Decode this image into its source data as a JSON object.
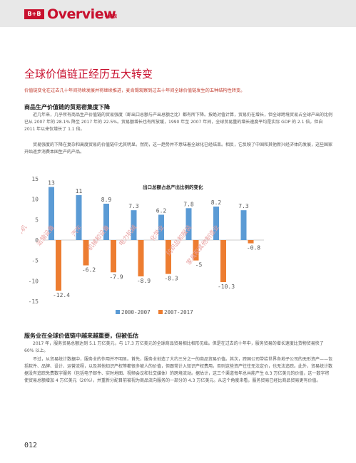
{
  "header": {
    "logo": "B+B",
    "title": "Overview",
    "subtitle": "• 概观"
  },
  "title": "全球价值链正经历五大转变",
  "intro": "价值链变化在过去几十年间持续发展并将继续推进，麦肯锡观察到过去十年间全球价值链发生的五种结构性转变。",
  "sections": [
    {
      "heading": "商品生产价值链的贸易密集度下降",
      "paragraphs": [
        "近几年来，几乎所有商品生产价值链的贸易强度（即出口总额与产出总额之比）都有所下降。按绝对值计算，贸易仍在增长，但全球跨境贸易占全球产出的比例已从 2007 年的 28.1% 降至 2017 年的 22.5%。贸易额增长也有所放缓，1990 年至 2007 年间，全球贸易量的增长速度平均是实际 GDP 的 2.1 倍，但自 2011 年以来仅增长了 1.1 倍。",
        "贸易强度的下降在复杂和高度贸易的价值链中尤其明显。然而，这一趋势并不意味着全球化已经结束。相反，它反映了中国和其他新兴经济体的发展，这些国家开始逐步消费本国生产的产品。"
      ]
    },
    {
      "heading": "服务业在全球价值链中越来越重要，但被低估",
      "paragraphs": [
        "2017 年，服务贸易总额达到 5.1 万亿美元，与 17.3 万亿美元的全球商品贸易相比相形见绌。但是在过去的十年中，服务贸易的增长速度比货物贸易快了 60% 以上。",
        "不过，从贸易统计数据中，服务业的作用并不明显。首先，服务业创造了大约三分之一的商品贸易价值。其次，跨国公司带给世界各地子公司的无形资产——包括软件、品牌、设计、运营流程，以及其他知识产权等都很多被人的价值，但跟常计入知识产权费用。否则这些资产往往无法定价，也无法追踪。此外，贸易统计数据没有追踪免费数字服务（包括电子邮件、实时地图、视频会议和社交媒体）的跨境流动。据估计，这三个渠道每年总共能产生 8.3 万亿美元的价值，这一数字将使贸易总额增加 4 万亿美元（20%），并重新分配目前被视为商品流向服务的一部分的 4.3 万亿美元。从这个角度来看，服务贸易已经比商品贸易更有价值。"
      ]
    }
  ],
  "page_number": "012",
  "chart_data": {
    "type": "bar",
    "title": "出口总额占总产出比例的变化",
    "categories": [
      "计算机",
      "运输设备",
      "汽车",
      "机械和设备",
      "电力机械",
      "化学业",
      "纺织品和服装",
      "家具和其他制造业"
    ],
    "series": [
      {
        "name": "2000-2007",
        "color": "#5b9bd5",
        "values": [
          13,
          11,
          8.9,
          7.3,
          6.2,
          7.8,
          8.2,
          7.3
        ]
      },
      {
        "name": "2007-2017",
        "color": "#ed7d31",
        "values": [
          -12.4,
          -6.2,
          -7.9,
          -8.9,
          -8.3,
          -5,
          -10.3,
          -0.8
        ]
      }
    ],
    "value_labels": {
      "2000-2007": [
        "13",
        "11",
        "8.9",
        "7.3",
        "6.2",
        "7.8",
        "8.2",
        "7.3"
      ],
      "2007-2017": [
        "-12.4",
        "-6.2",
        "-7.9",
        "-8.9",
        "-8.3",
        "-5",
        "-10.3",
        "-0.8"
      ]
    },
    "y_ticks": [
      "15",
      "10",
      "5",
      "0",
      "-5",
      "-10",
      "-15"
    ],
    "ylim": [
      -15,
      15
    ],
    "legend": "bottom"
  }
}
